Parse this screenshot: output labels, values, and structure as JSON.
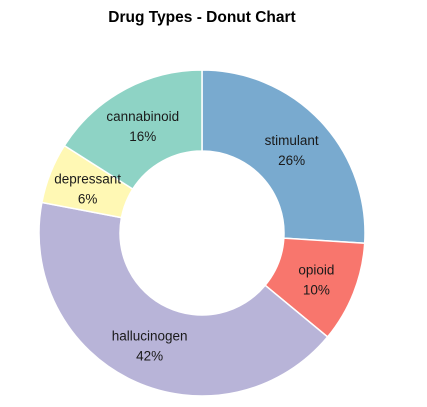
{
  "chart_data": {
    "type": "pie",
    "variant": "donut",
    "title": "Drug Types - Donut Chart",
    "start": "top, clockwise",
    "slices": [
      {
        "label": "stimulant",
        "percent_label": "26%",
        "value": 26,
        "color": "#79aacf"
      },
      {
        "label": "opioid",
        "percent_label": "10%",
        "value": 10,
        "color": "#f8766d"
      },
      {
        "label": "hallucinogen",
        "percent_label": "42%",
        "value": 42,
        "color": "#b8b4d8"
      },
      {
        "label": "depressant",
        "percent_label": "6%",
        "value": 6,
        "color": "#fff8b4"
      },
      {
        "label": "cannabinoid",
        "percent_label": "16%",
        "value": 16,
        "color": "#8ed3c5"
      }
    ]
  }
}
